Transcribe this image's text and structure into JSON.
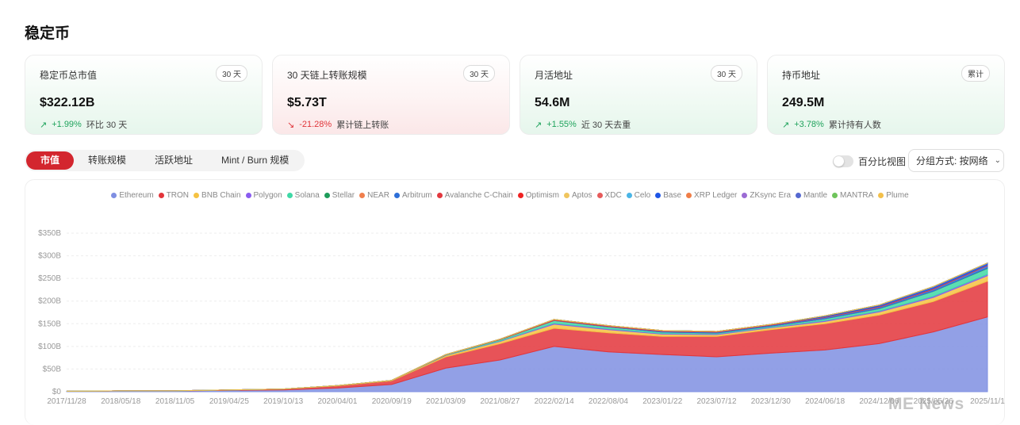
{
  "page": {
    "title": "稳定币"
  },
  "cards": [
    {
      "label": "稳定币总市值",
      "badge": "30 天",
      "value": "$322.12B",
      "arrow": "↗",
      "change": "+1.99%",
      "change_dir": "up",
      "note": "环比 30 天",
      "theme": "green"
    },
    {
      "label": "30 天链上转账规模",
      "badge": "30 天",
      "value": "$5.73T",
      "arrow": "↘",
      "change": "-21.28%",
      "change_dir": "down",
      "note": "累计链上转账",
      "theme": "red"
    },
    {
      "label": "月活地址",
      "badge": "30 天",
      "value": "54.6M",
      "arrow": "↗",
      "change": "+1.55%",
      "change_dir": "up",
      "note": "近 30 天去重",
      "theme": "green"
    },
    {
      "label": "持币地址",
      "badge": "累计",
      "value": "249.5M",
      "arrow": "↗",
      "change": "+3.78%",
      "change_dir": "up",
      "note": "累计持有人数",
      "theme": "green"
    }
  ],
  "tabs": [
    {
      "label": "市值",
      "active": true
    },
    {
      "label": "转账规模",
      "active": false
    },
    {
      "label": "活跃地址",
      "active": false
    },
    {
      "label": "Mint / Burn 规模",
      "active": false
    }
  ],
  "controls": {
    "percent_toggle_label": "百分比视图",
    "percent_toggle_on": false,
    "group_by_label": "分组方式: 按网络"
  },
  "watermark": "ME News",
  "chart_data": {
    "type": "area",
    "stacked": true,
    "ylim": [
      0,
      350
    ],
    "y_ticks": [
      "$0",
      "$50B",
      "$100B",
      "$150B",
      "$200B",
      "$250B",
      "$300B",
      "$350B"
    ],
    "x_ticks": [
      "2017/11/28",
      "2018/05/18",
      "2018/11/05",
      "2019/04/25",
      "2019/10/13",
      "2020/04/01",
      "2020/09/19",
      "2021/03/09",
      "2021/08/27",
      "2022/02/14",
      "2022/08/04",
      "2023/01/22",
      "2023/07/12",
      "2023/12/30",
      "2024/06/18",
      "2024/12/06",
      "2025/05/26",
      "2025/11/1"
    ],
    "grid": true,
    "legend_position": "top",
    "x": [
      "2017/11/28",
      "2018/05/18",
      "2018/11/05",
      "2019/04/25",
      "2019/10/13",
      "2020/04/01",
      "2020/09/19",
      "2021/03/09",
      "2021/08/27",
      "2022/02/14",
      "2022/08/04",
      "2023/01/22",
      "2023/07/12",
      "2023/12/30",
      "2024/06/18",
      "2024/12/06",
      "2025/05/26",
      "2025/11/1"
    ],
    "series": [
      {
        "name": "Ethereum",
        "color": "#7f8fe2",
        "values": [
          1,
          2,
          2,
          3,
          4,
          8,
          16,
          52,
          70,
          100,
          88,
          82,
          77,
          85,
          92,
          106,
          132,
          165
        ]
      },
      {
        "name": "TRON",
        "color": "#e3353b",
        "values": [
          0,
          0,
          0,
          1,
          2,
          5,
          8,
          25,
          36,
          40,
          42,
          40,
          45,
          52,
          58,
          63,
          67,
          79
        ]
      },
      {
        "name": "BNB Chain",
        "color": "#f5c242",
        "values": [
          0,
          0,
          0,
          0,
          0,
          0.5,
          1,
          3,
          5,
          9,
          7,
          5,
          4,
          4,
          5,
          7,
          9,
          12
        ]
      },
      {
        "name": "Polygon",
        "color": "#8a5cf0",
        "values": [
          0,
          0,
          0,
          0,
          0,
          0,
          0,
          0.5,
          1,
          2,
          2,
          1.5,
          1.5,
          1.5,
          2,
          2,
          2.5,
          3
        ]
      },
      {
        "name": "Solana",
        "color": "#3fd8a6",
        "values": [
          0,
          0,
          0,
          0,
          0,
          0,
          0,
          1,
          3,
          6,
          4,
          3,
          2,
          2,
          4,
          5,
          11,
          13
        ]
      },
      {
        "name": "Stellar",
        "color": "#1e9c5a",
        "values": [
          0,
          0,
          0,
          0,
          0,
          0,
          0,
          0,
          0,
          0,
          0,
          0,
          0,
          0,
          0,
          0.5,
          0.5,
          1
        ]
      },
      {
        "name": "NEAR",
        "color": "#f07f4d",
        "values": [
          0,
          0,
          0,
          0,
          0,
          0,
          0,
          0,
          0,
          0,
          0,
          0,
          0,
          0,
          0,
          0,
          0,
          0
        ]
      },
      {
        "name": "Arbitrum",
        "color": "#2d6fd8",
        "values": [
          0,
          0,
          0,
          0,
          0,
          0,
          0,
          0,
          0,
          0.5,
          1,
          2,
          2,
          2.5,
          3,
          3,
          4,
          5
        ]
      },
      {
        "name": "Avalanche C-Chain",
        "color": "#e2383e",
        "values": [
          0,
          0,
          0,
          0,
          0,
          0,
          0,
          0.5,
          1,
          2,
          2,
          1.5,
          1.5,
          1.5,
          1.5,
          2,
          2,
          2
        ]
      },
      {
        "name": "Optimism",
        "color": "#ef2222",
        "values": [
          0,
          0,
          0,
          0,
          0,
          0,
          0,
          0,
          0,
          0,
          0,
          0,
          0,
          0,
          0,
          0,
          0,
          0
        ]
      },
      {
        "name": "Aptos",
        "color": "#f0c55e",
        "values": [
          0,
          0,
          0,
          0,
          0,
          0,
          0,
          0,
          0,
          0,
          0,
          0,
          0,
          0,
          0,
          0,
          0,
          0
        ]
      },
      {
        "name": "XDC",
        "color": "#e65b5b",
        "values": [
          0,
          0,
          0,
          0,
          0,
          0,
          0,
          0,
          0,
          0,
          0,
          0,
          0,
          0,
          0,
          0,
          0,
          0
        ]
      },
      {
        "name": "Celo",
        "color": "#4ab5e6",
        "values": [
          0,
          0,
          0,
          0,
          0,
          0,
          0,
          0,
          0,
          0,
          0,
          0,
          0,
          0,
          0,
          0,
          0,
          0
        ]
      },
      {
        "name": "Base",
        "color": "#1e55e6",
        "values": [
          0,
          0,
          0,
          0,
          0,
          0,
          0,
          0,
          0,
          0,
          0,
          0,
          0,
          0,
          2,
          3,
          4,
          4
        ]
      },
      {
        "name": "XRP Ledger",
        "color": "#f07e47",
        "values": [
          0,
          0,
          0,
          0,
          0,
          0,
          0,
          0,
          0,
          0,
          0,
          0,
          0,
          0,
          0,
          0,
          0,
          0
        ]
      },
      {
        "name": "ZKsync Era",
        "color": "#9b6bd4",
        "values": [
          0,
          0,
          0,
          0,
          0,
          0,
          0,
          0,
          0,
          0,
          0,
          0,
          0,
          0,
          0,
          0,
          0,
          0
        ]
      },
      {
        "name": "Mantle",
        "color": "#5568d0",
        "values": [
          0,
          0,
          0,
          0,
          0,
          0,
          0,
          0,
          0,
          0,
          0,
          0,
          0,
          0,
          0,
          0,
          0,
          0
        ]
      },
      {
        "name": "MANTRA",
        "color": "#6fc45b",
        "values": [
          0,
          0,
          0,
          0,
          0,
          0,
          0,
          0,
          0,
          0,
          0,
          0,
          0,
          0,
          0,
          0,
          0,
          0
        ]
      },
      {
        "name": "Plume",
        "color": "#f3c04a",
        "values": [
          0,
          0,
          0,
          0,
          0,
          0,
          0,
          0,
          0,
          0,
          0,
          0,
          0,
          0,
          0,
          0,
          0,
          0
        ]
      }
    ]
  }
}
